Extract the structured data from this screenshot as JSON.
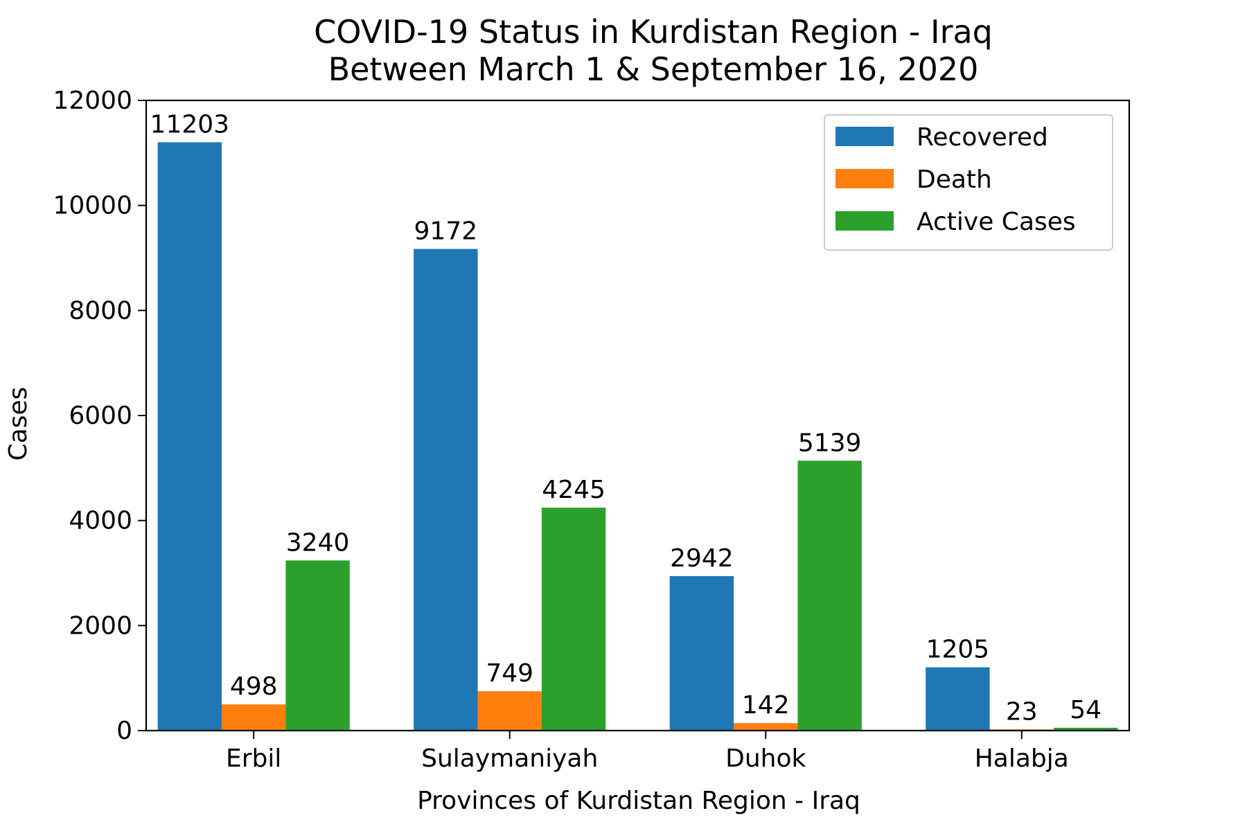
{
  "chart_data": {
    "type": "bar",
    "title": "COVID-19 Status in Kurdistan Region - Iraq",
    "subtitle": "Between March 1 & September 16, 2020",
    "xlabel": "Provinces of Kurdistan Region - Iraq",
    "ylabel": "Cases",
    "categories": [
      "Erbil",
      "Sulaymaniyah",
      "Duhok",
      "Halabja"
    ],
    "series": [
      {
        "name": "Recovered",
        "color": "#1f77b4",
        "values": [
          11203,
          9172,
          2942,
          1205
        ]
      },
      {
        "name": "Death",
        "color": "#ff7f0e",
        "values": [
          498,
          749,
          142,
          23
        ]
      },
      {
        "name": "Active Cases",
        "color": "#2ca02c",
        "values": [
          3240,
          4245,
          5139,
          54
        ]
      }
    ],
    "ylim": [
      0,
      12000
    ],
    "yticks": [
      0,
      2000,
      4000,
      6000,
      8000,
      10000,
      12000
    ],
    "grid": false,
    "legend_position": "top-right",
    "data_labels": true
  }
}
